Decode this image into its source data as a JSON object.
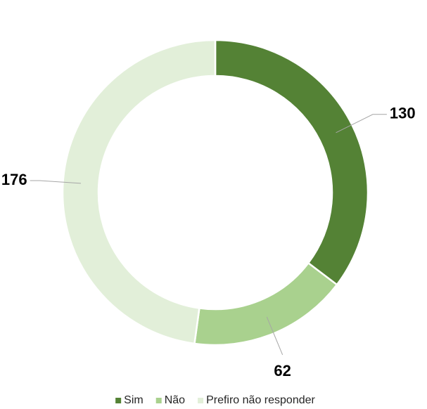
{
  "chart_data": {
    "type": "donut",
    "categories": [
      "Sim",
      "Não",
      "Prefiro não responder"
    ],
    "values": [
      130,
      62,
      176
    ],
    "colors": [
      "#548235",
      "#a9d18e",
      "#e2efd9"
    ],
    "legend": "bottom"
  }
}
